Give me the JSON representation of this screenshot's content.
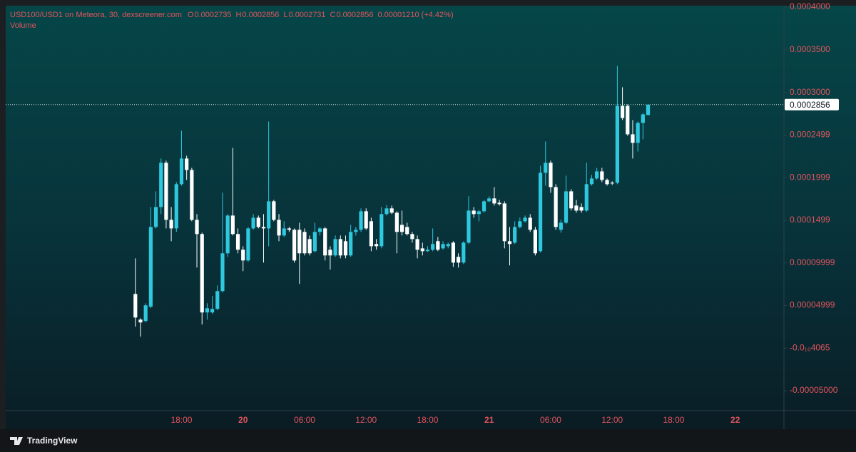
{
  "chart_data": {
    "type": "candlestick",
    "title": "USD100/USD1 on Meteora, 30, dexscreener.com",
    "ohlc_labels": [
      "O",
      "H",
      "L",
      "C"
    ],
    "change_label": "0.00001210 (+4.42%)",
    "subtitle": "Volume",
    "brand": "TradingView",
    "up_color": "#2ec8df",
    "down_color": "#ffffff",
    "last_price_line": true,
    "ylim": [
      -7.34e-05,
      0.0004017
    ],
    "yticks": [
      {
        "value": 0.0004,
        "label": "0.0004000"
      },
      {
        "value": 0.00035,
        "label": "0.0003500"
      },
      {
        "value": 0.0003,
        "label": "0.0003000"
      },
      {
        "value": 0.0002499,
        "label": "0.0002499"
      },
      {
        "value": 0.0001999,
        "label": "0.0001999"
      },
      {
        "value": 0.0001499,
        "label": "0.0001499"
      },
      {
        "value": 9.999e-05,
        "label": "0.00009999"
      },
      {
        "value": 4.999e-05,
        "label": "0.00004999"
      },
      {
        "value": -4.065e-13,
        "label": "-0.0₁₀4065"
      },
      {
        "value": -5e-05,
        "label": "-0.00005000"
      }
    ],
    "categories": [
      null,
      null,
      null,
      null,
      null,
      null,
      null,
      null,
      null,
      null,
      null,
      null,
      null,
      null,
      null,
      null,
      null,
      null,
      null,
      null,
      null,
      null,
      null,
      null,
      null,
      null,
      null,
      null,
      null,
      null,
      null,
      null,
      null,
      null,
      "18:00",
      null,
      null,
      null,
      null,
      null,
      null,
      null,
      null,
      null,
      null,
      null,
      "20",
      null,
      null,
      null,
      null,
      null,
      null,
      null,
      null,
      null,
      null,
      null,
      "06:00",
      null,
      null,
      null,
      null,
      null,
      null,
      null,
      null,
      null,
      null,
      null,
      "12:00",
      null,
      null,
      null,
      null,
      null,
      null,
      null,
      null,
      null,
      null,
      null,
      "18:00",
      null,
      null,
      null,
      null,
      null,
      null,
      null,
      null,
      null,
      null,
      null,
      "21",
      null,
      null,
      null,
      null,
      null,
      null,
      null,
      null,
      null,
      null,
      null,
      "06:00",
      null,
      null,
      null,
      null,
      null,
      null,
      null,
      null,
      null,
      null,
      null,
      "12:00",
      null,
      null,
      null,
      null,
      null,
      null,
      null,
      null,
      null,
      null,
      null,
      "18:00",
      null,
      null,
      null,
      null,
      null,
      null,
      null,
      null,
      null,
      null,
      null,
      "22",
      null,
      null,
      null,
      null,
      null,
      null,
      null,
      null,
      null
    ],
    "open": [
      null,
      null,
      null,
      null,
      null,
      null,
      null,
      null,
      null,
      null,
      null,
      null,
      null,
      null,
      null,
      null,
      null,
      null,
      null,
      null,
      null,
      null,
      null,
      null,
      null,
      6.35e-05,
      3.34e-05,
      3.18e-05,
      4.85e-05,
      0.0001421,
      0.0001655,
      0.0002174,
      0.0001505,
      0.0001404,
      0.0001923,
      0.0002224,
      0.000209,
      0.0001505,
      0.0001338,
      4.18e-05,
      4.18e-05,
      4.6e-05,
      6.69e-05,
      0.0001112,
      0.0001555,
      0.0001338,
      0.0001154,
      0.0001028,
      0.0001404,
      0.000153,
      0.0001421,
      0.0001404,
      0.0001722,
      0.0001505,
      0.0001321,
      0.0001404,
      0.0001388,
      0.0001388,
      0.0001363,
      0.0001279,
      0.0001137,
      0.0001363,
      0.0001404,
      0.0001154,
      0.0001087,
      0.0001279,
      0.0001254,
      0.0001087,
      0.0001363,
      0.0001388,
      0.0001605,
      0.0001488,
      0.0001221,
      0.0001195,
      0.0001572,
      0.0001639,
      0.0001588,
      0.0001446,
      0.0001421,
      0.0001338,
      0.0001279,
      0.000117,
      0.0001137,
      0.0001154,
      0.0001254,
      0.000117,
      0.0001195,
      0.0001237,
      0.000107,
      0.0001003,
      0.0001237,
      0.0001613,
      0.0001572,
      0.0001605,
      0.0001722,
      0.0001756,
      0.0001705,
      0.0001697,
      0.0001254,
      0.0001237,
      0.0001421,
      0.0001488,
      0.000153,
      0.0001388,
      0.0001137,
      0.0002057,
      0.0002174,
      0.0001889,
      0.0001388,
      0.0001471,
      0.0001839,
      0.0001672,
      0.0001655,
      0.0001613,
      0.0001923,
      0.000199,
      0.0002073,
      0.0001973,
      0.000194,
      0.000194,
      0.0002842,
      0.0002842,
      0.0002508,
      0.0002408,
      0.0002642,
      0.0002735,
      null,
      null,
      null,
      null,
      null,
      null,
      null,
      null,
      null,
      null,
      null,
      null,
      null,
      null,
      null,
      null,
      null,
      null,
      null,
      null,
      null,
      null,
      null,
      null,
      null,
      null
    ],
    "high": [
      null,
      null,
      null,
      null,
      null,
      null,
      null,
      null,
      null,
      null,
      null,
      null,
      null,
      null,
      null,
      null,
      null,
      null,
      null,
      null,
      null,
      null,
      null,
      null,
      null,
      0.0001053,
      3.51e-05,
      5.27e-05,
      0.0001655,
      0.0001839,
      0.0002224,
      0.0002199,
      0.0001655,
      0.0001948,
      0.000255,
      0.0002257,
      0.0002115,
      0.0001572,
      0.0001354,
      5.27e-05,
      6.1e-05,
      7.36e-05,
      0.0001822,
      0.0001572,
      0.0002349,
      0.0001404,
      0.0001195,
      0.0001421,
      0.0001572,
      0.0001555,
      0.0001572,
      0.0002658,
      0.0001739,
      0.0001572,
      0.0001488,
      0.0001421,
      0.0001404,
      0.0001471,
      0.0001404,
      0.0001321,
      0.0001471,
      0.0001421,
      0.0001421,
      0.0001195,
      0.0001321,
      0.0001321,
      0.0001321,
      0.0001446,
      0.0001421,
      0.0001639,
      0.0001639,
      0.000153,
      0.0001279,
      0.0001655,
      0.000168,
      0.0001672,
      0.0001605,
      0.0001613,
      0.0001471,
      0.0001363,
      0.0001321,
      0.0001237,
      0.0001195,
      0.0001404,
      0.0001304,
      0.0001254,
      0.0001237,
      0.0001254,
      0.0001112,
      0.0001254,
      0.0001781,
      0.0001655,
      0.0001622,
      0.0001739,
      0.0001781,
      0.0001889,
      0.0001739,
      0.0001722,
      0.0001421,
      0.0001488,
      0.000153,
      0.0001555,
      0.0001572,
      0.0001421,
      0.000214,
      0.0002424,
      0.0002199,
      0.0001923,
      0.0001505,
      0.0002023,
      0.0001864,
      0.0001739,
      0.0001697,
      0.0002174,
      0.0002031,
      0.0002115,
      0.0002115,
      0.000199,
      0.0001956,
      0.0003311,
      0.000306,
      0.0002859,
      0.0002675,
      0.0002658,
      0.0002759,
      0.0002856,
      null,
      null,
      null,
      null,
      null,
      null,
      null,
      null,
      null,
      null,
      null,
      null,
      null,
      null,
      null,
      null,
      null,
      null,
      null,
      null,
      null,
      null,
      null,
      null,
      null,
      null
    ],
    "low": [
      null,
      null,
      null,
      null,
      null,
      null,
      null,
      null,
      null,
      null,
      null,
      null,
      null,
      null,
      null,
      null,
      null,
      null,
      null,
      null,
      null,
      null,
      null,
      null,
      null,
      2.51e-05,
      1.34e-05,
      3.01e-05,
      4.68e-05,
      0.0001404,
      0.0001572,
      0.0001404,
      0.0001254,
      0.0001363,
      0.0001906,
      0.0001973,
      0.0001488,
      9.45e-05,
      2.76e-05,
      3.34e-05,
      4.01e-05,
      4.43e-05,
      6.52e-05,
      0.000107,
      0.0001321,
      0.0001112,
      9.03e-05,
      0.0001012,
      0.0001388,
      0.0001404,
      0.0001003,
      0.0001195,
      0.0001488,
      0.0001254,
      0.0001304,
      0.0001363,
      0.0001003,
      7.52e-05,
      0.0001087,
      0.0001087,
      0.000112,
      0.0001321,
      0.0001028,
      9.2e-05,
      0.000107,
      0.0001053,
      0.0001053,
      0.000107,
      0.0001321,
      0.0001363,
      0.0001388,
      0.0001137,
      0.0001154,
      0.000117,
      0.0001555,
      0.0001572,
      0.0001112,
      0.0001321,
      0.0001321,
      0.0001237,
      0.0001053,
      0.0001087,
      0.0001129,
      0.0001137,
      0.0001137,
      0.0001154,
      0.000117,
      9.53e-05,
      9.45e-05,
      9.86e-05,
      0.0001221,
      0.000153,
      0.0001488,
      0.0001588,
      0.0001714,
      0.0001672,
      0.0001672,
      0.000117,
      9.7e-05,
      0.0001221,
      0.0001404,
      0.0001471,
      0.0001363,
      0.0001087,
      0.000112,
      0.0001906,
      0.0001822,
      0.0001388,
      0.0001354,
      0.0001455,
      0.0001613,
      0.0001588,
      0.0001588,
      0.0001597,
      0.0001906,
      0.0001973,
      0.0001948,
      0.0001906,
      0.0001914,
      0.0001923,
      0.0002675,
      0.0002491,
      0.0002224,
      0.0002307,
      0.0002449,
      0.0002731,
      null,
      null,
      null,
      null,
      null,
      null,
      null,
      null,
      null,
      null,
      null,
      null,
      null,
      null,
      null,
      null,
      null,
      null,
      null,
      null,
      null,
      null,
      null,
      null,
      null,
      null
    ],
    "close": [
      null,
      null,
      null,
      null,
      null,
      null,
      null,
      null,
      null,
      null,
      null,
      null,
      null,
      null,
      null,
      null,
      null,
      null,
      null,
      null,
      null,
      null,
      null,
      null,
      null,
      3.59e-05,
      3.01e-05,
      5.02e-05,
      0.0001421,
      0.0001655,
      0.0002174,
      0.0001505,
      0.0001404,
      0.0001923,
      0.0002224,
      0.000209,
      0.0001505,
      0.0001338,
      4.18e-05,
      4.68e-05,
      4.6e-05,
      6.69e-05,
      0.0001112,
      0.0001555,
      0.0001338,
      0.0001154,
      0.0001028,
      0.0001404,
      0.000153,
      0.0001421,
      0.0001404,
      0.0001722,
      0.0001505,
      0.0001321,
      0.0001404,
      0.0001388,
      0.0001028,
      0.0001112,
      0.0001112,
      0.0001112,
      0.0001363,
      0.0001404,
      0.0001087,
      0.0001087,
      0.0001279,
      0.0001087,
      0.0001087,
      0.0001363,
      0.0001388,
      0.0001605,
      0.0001404,
      0.0001195,
      0.0001195,
      0.0001572,
      0.0001639,
      0.0001588,
      0.0001363,
      0.0001363,
      0.0001338,
      0.0001279,
      0.0001154,
      0.0001137,
      0.0001154,
      0.0001221,
      0.0001154,
      0.0001221,
      0.0001221,
      0.0001003,
      0.0001003,
      0.0001237,
      0.0001613,
      0.0001572,
      0.0001605,
      0.0001722,
      0.0001756,
      0.0001697,
      0.0001689,
      0.0001254,
      0.0001221,
      0.0001421,
      0.0001488,
      0.000153,
      0.0001388,
      0.0001112,
      0.0002057,
      0.0002174,
      0.0001889,
      0.0001421,
      0.0001471,
      0.0001839,
      0.0001639,
      0.0001613,
      0.0001613,
      0.0001923,
      0.000199,
      0.0002073,
      0.0001973,
      0.0001923,
      0.0001931,
      0.0002842,
      0.00027,
      0.0002508,
      0.0002408,
      0.0002642,
      0.0002742,
      0.0002856,
      null,
      null,
      null,
      null,
      null,
      null,
      null,
      null,
      null,
      null,
      null,
      null,
      null,
      null,
      null,
      null,
      null,
      null,
      null,
      null,
      null,
      null,
      null,
      null,
      null,
      null
    ]
  }
}
